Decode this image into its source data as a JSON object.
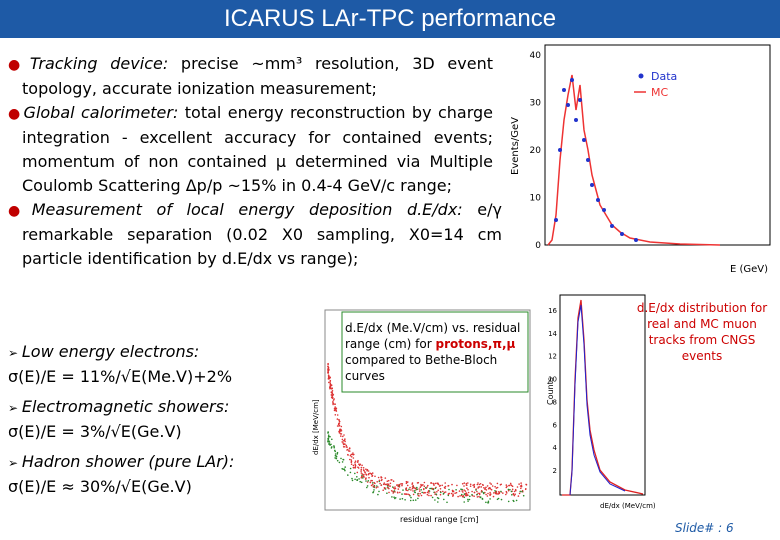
{
  "header": {
    "title": "ICARUS LAr-TPC performance"
  },
  "bullets": [
    {
      "lead": "Tracking device:",
      "text": " precise ~mm³ resolution, 3D event topology, accurate ionization measurement;"
    },
    {
      "lead": "Global calorimeter:",
      "text": " total energy reconstruction by charge integration - excellent accuracy for contained events;  momentum of non contained μ determined via Multiple Coulomb Scattering Δp/p ~15%  in  0.4-4 GeV/c range;"
    },
    {
      "lead": "Measurement of local energy deposition d.E/dx:",
      "text": " e/γ remarkable separation (0.02 X0 sampling, X0=14 cm particle identification by d.E/dx vs range);"
    }
  ],
  "subitems": [
    {
      "lead": "Low energy electrons:",
      "formula": "σ(E)/E = 11%/√E(Me.V)+2%"
    },
    {
      "lead": "Electromagnetic showers:",
      "formula": "σ(E)/E = 3%/√E(Ge.V)"
    },
    {
      "lead": "Hadron shower (pure LAr):",
      "formula": "σ(E)/E ≈ 30%/√E(Ge.V)"
    }
  ],
  "plot_energy": {
    "legend": [
      "Data",
      "MC"
    ],
    "ylabel": "Events/GeV",
    "xlabel": "E (GeV)",
    "yticks": [
      "0",
      "10",
      "20",
      "30",
      "40"
    ]
  },
  "plot_dedx_range": {
    "caption": "d.E/dx (Me.V/cm) vs. residual range (cm) for",
    "caption_em": "protons,π,μ",
    "caption_end": " compared to Bethe-Bloch curves",
    "ylabel": "dE/dx [MeV/cm]",
    "xlabel": "residual range [cm]"
  },
  "plot_dedx_dist": {
    "caption": "d.E/dx distribution for real and MC muon tracks from CNGS events",
    "ylabel": "Counts",
    "xlabel": "dE/dx (MeV/cm)",
    "yticks": [
      "2",
      "4",
      "6",
      "8",
      "10",
      "12",
      "14",
      "16"
    ]
  },
  "footer": {
    "slide": "Slide# : 6"
  }
}
